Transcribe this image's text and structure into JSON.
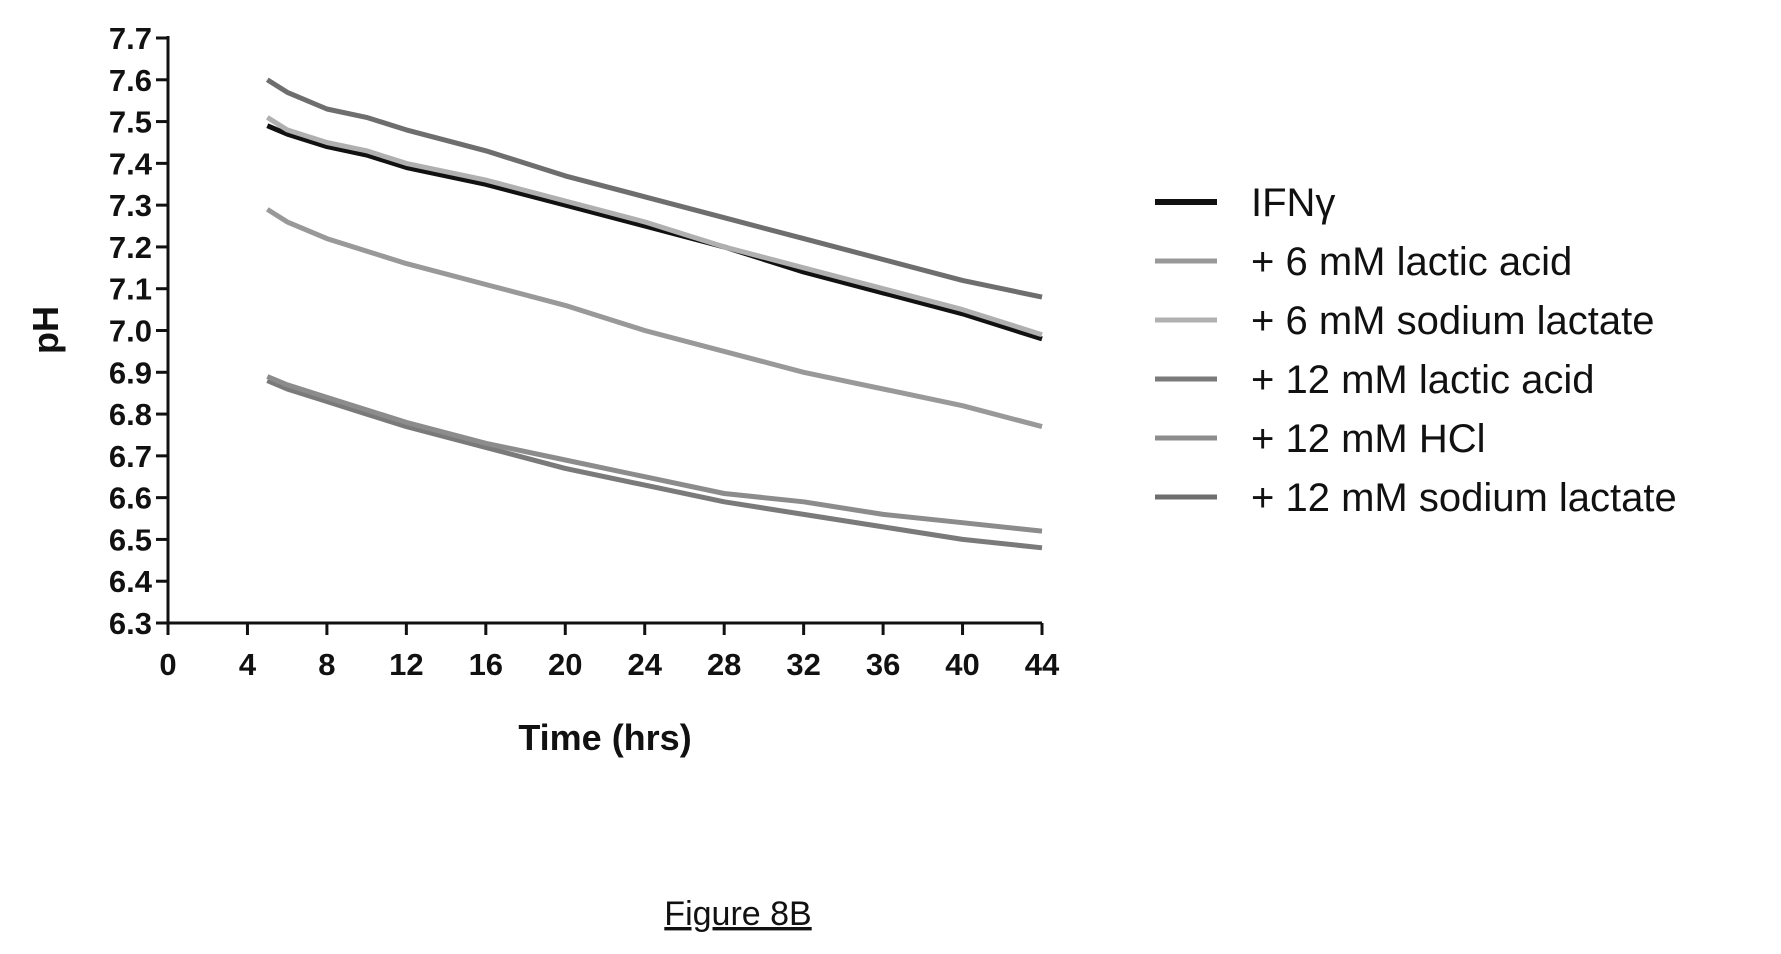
{
  "chart_data": {
    "type": "line",
    "xlabel": "Time (hrs)",
    "ylabel": "pH",
    "xlim": [
      0,
      44
    ],
    "ylim": [
      6.3,
      7.7
    ],
    "x_ticks": [
      0,
      4,
      8,
      12,
      16,
      20,
      24,
      28,
      32,
      36,
      40,
      44
    ],
    "y_ticks": [
      6.3,
      6.4,
      6.5,
      6.6,
      6.7,
      6.8,
      6.9,
      7.0,
      7.1,
      7.2,
      7.3,
      7.4,
      7.5,
      7.6,
      7.7
    ],
    "grid": false,
    "legend_position": "right",
    "series": [
      {
        "name": "IFNγ",
        "color": "#111111",
        "x": [
          5,
          6,
          8,
          10,
          12,
          16,
          20,
          24,
          28,
          32,
          36,
          40,
          44
        ],
        "y": [
          7.49,
          7.47,
          7.44,
          7.42,
          7.39,
          7.35,
          7.3,
          7.25,
          7.2,
          7.14,
          7.09,
          7.04,
          6.98
        ]
      },
      {
        "name": "+ 6 mM lactic acid",
        "color": "#999999",
        "x": [
          5,
          6,
          8,
          10,
          12,
          16,
          20,
          24,
          28,
          32,
          36,
          40,
          44
        ],
        "y": [
          7.29,
          7.26,
          7.22,
          7.19,
          7.16,
          7.11,
          7.06,
          7.0,
          6.95,
          6.9,
          6.86,
          6.82,
          6.77
        ]
      },
      {
        "name": "+ 6 mM sodium lactate",
        "color": "#b0b0b0",
        "x": [
          5,
          6,
          8,
          10,
          12,
          16,
          20,
          24,
          28,
          32,
          36,
          40,
          44
        ],
        "y": [
          7.51,
          7.48,
          7.45,
          7.43,
          7.4,
          7.36,
          7.31,
          7.26,
          7.2,
          7.15,
          7.1,
          7.05,
          6.99
        ]
      },
      {
        "name": "+ 12 mM lactic acid",
        "color": "#7a7a7a",
        "x": [
          5,
          6,
          8,
          10,
          12,
          16,
          20,
          24,
          28,
          32,
          36,
          40,
          44
        ],
        "y": [
          6.88,
          6.86,
          6.83,
          6.8,
          6.77,
          6.72,
          6.67,
          6.63,
          6.59,
          6.56,
          6.53,
          6.5,
          6.48
        ]
      },
      {
        "name": "+ 12 mM HCl",
        "color": "#8c8c8c",
        "x": [
          5,
          6,
          8,
          10,
          12,
          16,
          20,
          24,
          28,
          32,
          36,
          40,
          44
        ],
        "y": [
          6.89,
          6.87,
          6.84,
          6.81,
          6.78,
          6.73,
          6.69,
          6.65,
          6.61,
          6.59,
          6.56,
          6.54,
          6.52
        ]
      },
      {
        "name": "+ 12 mM sodium lactate",
        "color": "#6e6e6e",
        "x": [
          5,
          6,
          8,
          10,
          12,
          16,
          20,
          24,
          28,
          32,
          36,
          40,
          44
        ],
        "y": [
          7.6,
          7.57,
          7.53,
          7.51,
          7.48,
          7.43,
          7.37,
          7.32,
          7.27,
          7.22,
          7.17,
          7.12,
          7.08
        ]
      }
    ]
  },
  "caption": "Figure 8B"
}
